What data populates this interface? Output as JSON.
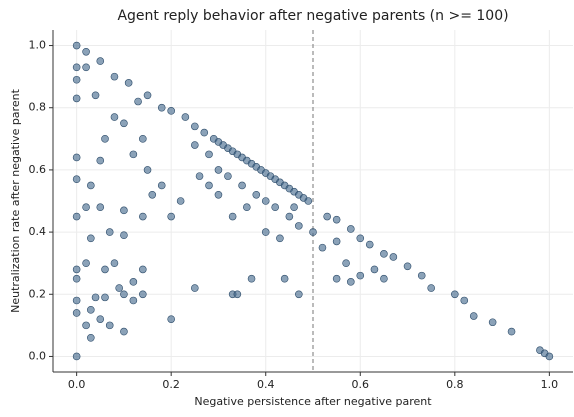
{
  "chart_data": {
    "type": "scatter",
    "title": "Agent reply behavior after negative parents (n >= 100)",
    "xlabel": "Negative persistence after negative parent",
    "ylabel": "Neutralization rate after negative parent",
    "color": "#3d6489",
    "x": [
      0,
      0.02,
      0.05,
      0.08,
      0.11,
      0.15,
      0.18,
      0.2,
      0.23,
      0.25,
      0.27,
      0.29,
      0.3,
      0.31,
      0.32,
      0.33,
      0.34,
      0.35,
      0.36,
      0.37,
      0.38,
      0.39,
      0.4,
      0.41,
      0.42,
      0.43,
      0.44,
      0.45,
      0.46,
      0.47,
      0.48,
      0.49,
      0.53,
      0.55,
      0.58,
      0.6,
      0.62,
      0.65,
      0.67,
      0.7,
      0.73,
      0.75,
      0.8,
      0.82,
      0.84,
      0.88,
      0.92,
      0.98,
      0.99,
      1,
      0.25,
      0.28,
      0.3,
      0.32,
      0.35,
      0.38,
      0.4,
      0.42,
      0.45,
      0.47,
      0.5,
      0.52,
      0.55,
      0.57,
      0.6,
      0.63,
      0.65,
      0.55,
      0.58,
      0.47,
      0.44,
      0.37,
      0.33,
      0.25,
      0.2,
      0.2,
      0.22,
      0.18,
      0.15,
      0.12,
      0.14,
      0.1,
      0.08,
      0.06,
      0.05,
      0.03,
      0.02,
      0.05,
      0.1,
      0.14,
      0.1,
      0.07,
      0.03,
      0.02,
      0,
      0,
      0.06,
      0.08,
      0.1,
      0.12,
      0.09,
      0.06,
      0.04,
      0.03,
      0.05,
      0.07,
      0.1,
      0.02,
      0,
      0,
      0,
      0.03,
      0.14,
      0.14,
      0.12,
      0,
      0,
      0,
      0,
      0,
      0,
      0.02,
      0.04,
      0.13,
      0.16,
      0.26,
      0.28,
      0.3,
      0.33,
      0.36,
      0.4,
      0.43,
      0.34,
      0.46
    ],
    "y": [
      1,
      0.98,
      0.95,
      0.9,
      0.88,
      0.84,
      0.8,
      0.79,
      0.77,
      0.74,
      0.72,
      0.7,
      0.69,
      0.68,
      0.67,
      0.66,
      0.65,
      0.64,
      0.63,
      0.62,
      0.61,
      0.6,
      0.59,
      0.58,
      0.57,
      0.56,
      0.55,
      0.54,
      0.53,
      0.52,
      0.51,
      0.5,
      0.45,
      0.44,
      0.41,
      0.38,
      0.36,
      0.33,
      0.32,
      0.29,
      0.26,
      0.22,
      0.2,
      0.18,
      0.13,
      0.11,
      0.08,
      0.02,
      0.01,
      0,
      0.68,
      0.65,
      0.6,
      0.58,
      0.55,
      0.52,
      0.5,
      0.48,
      0.45,
      0.42,
      0.4,
      0.35,
      0.37,
      0.3,
      0.26,
      0.28,
      0.25,
      0.25,
      0.24,
      0.2,
      0.25,
      0.25,
      0.2,
      0.22,
      0.12,
      0.45,
      0.5,
      0.55,
      0.6,
      0.65,
      0.7,
      0.75,
      0.77,
      0.7,
      0.63,
      0.55,
      0.48,
      0.48,
      0.47,
      0.45,
      0.39,
      0.4,
      0.38,
      0.3,
      0.28,
      0.25,
      0.28,
      0.3,
      0.2,
      0.18,
      0.22,
      0.19,
      0.19,
      0.15,
      0.12,
      0.1,
      0.08,
      0.1,
      0.14,
      0.18,
      0,
      0.06,
      0.28,
      0.2,
      0.24,
      0.45,
      0.57,
      0.64,
      0.83,
      0.89,
      0.93,
      0.93,
      0.84,
      0.82,
      0.52,
      0.58,
      0.55,
      0.52,
      0.45,
      0.48,
      0.4,
      0.38,
      0.2,
      0.48
    ],
    "reference_line_x": 0.5,
    "xlim": [
      -0.05,
      1.05
    ],
    "ylim": [
      -0.05,
      1.05
    ],
    "xticks": [
      {
        "value": 0,
        "label": "0.0"
      },
      {
        "value": 0.2,
        "label": "0.2"
      },
      {
        "value": 0.4,
        "label": "0.4"
      },
      {
        "value": 0.6,
        "label": "0.6"
      },
      {
        "value": 0.8,
        "label": "0.8"
      },
      {
        "value": 1,
        "label": "1.0"
      }
    ],
    "yticks": [
      {
        "value": 0,
        "label": "0.0"
      },
      {
        "value": 0.2,
        "label": "0.2"
      },
      {
        "value": 0.4,
        "label": "0.4"
      },
      {
        "value": 0.6,
        "label": "0.6"
      },
      {
        "value": 0.8,
        "label": "0.8"
      },
      {
        "value": 1,
        "label": "1.0"
      }
    ],
    "grid": true
  }
}
